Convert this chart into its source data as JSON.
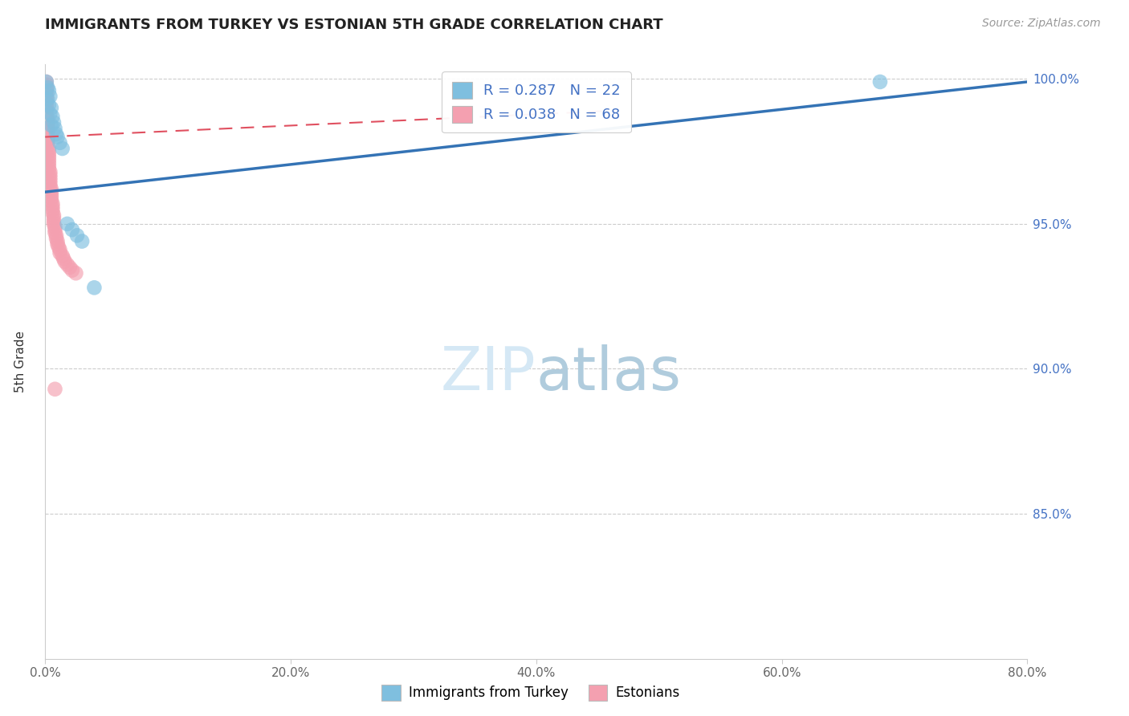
{
  "title": "IMMIGRANTS FROM TURKEY VS ESTONIAN 5TH GRADE CORRELATION CHART",
  "source_text": "Source: ZipAtlas.com",
  "ylabel": "5th Grade",
  "xlim": [
    0.0,
    0.8
  ],
  "ylim": [
    0.8,
    1.005
  ],
  "xtick_vals": [
    0.0,
    0.2,
    0.4,
    0.6,
    0.8
  ],
  "xtick_labels": [
    "0.0%",
    "20.0%",
    "40.0%",
    "60.0%",
    "80.0%"
  ],
  "ytick_vals": [
    0.85,
    0.9,
    0.95,
    1.0
  ],
  "ytick_labels": [
    "85.0%",
    "90.0%",
    "95.0%",
    "100.0%"
  ],
  "blue_color": "#7fbfdf",
  "pink_color": "#f4a0b0",
  "blue_line_color": "#3473b5",
  "pink_line_color": "#e05060",
  "legend_blue_label": "R = 0.287   N = 22",
  "legend_pink_label": "R = 0.038   N = 68",
  "legend_label1": "Immigrants from Turkey",
  "legend_label2": "Estonians",
  "ytick_color": "#4472c4",
  "grid_color": "#cccccc",
  "background_color": "#ffffff",
  "watermark_color": "#d5e8f5",
  "blue_scatter_x": [
    0.001,
    0.002,
    0.002,
    0.003,
    0.003,
    0.004,
    0.004,
    0.005,
    0.005,
    0.006,
    0.007,
    0.008,
    0.009,
    0.01,
    0.012,
    0.014,
    0.018,
    0.022,
    0.026,
    0.03,
    0.04,
    0.68
  ],
  "blue_scatter_y": [
    0.999,
    0.997,
    0.993,
    0.996,
    0.991,
    0.994,
    0.988,
    0.99,
    0.984,
    0.987,
    0.985,
    0.983,
    0.981,
    0.98,
    0.978,
    0.976,
    0.95,
    0.948,
    0.946,
    0.944,
    0.928,
    0.999
  ],
  "pink_scatter_x": [
    0.001,
    0.001,
    0.001,
    0.001,
    0.001,
    0.001,
    0.001,
    0.001,
    0.001,
    0.001,
    0.001,
    0.001,
    0.001,
    0.002,
    0.002,
    0.002,
    0.002,
    0.002,
    0.002,
    0.002,
    0.002,
    0.002,
    0.002,
    0.003,
    0.003,
    0.003,
    0.003,
    0.003,
    0.003,
    0.003,
    0.003,
    0.004,
    0.004,
    0.004,
    0.004,
    0.004,
    0.004,
    0.005,
    0.005,
    0.005,
    0.005,
    0.005,
    0.006,
    0.006,
    0.006,
    0.006,
    0.007,
    0.007,
    0.007,
    0.007,
    0.008,
    0.008,
    0.008,
    0.009,
    0.009,
    0.01,
    0.01,
    0.011,
    0.012,
    0.012,
    0.014,
    0.015,
    0.016,
    0.018,
    0.02,
    0.022,
    0.025,
    0.008
  ],
  "pink_scatter_y": [
    0.999,
    0.998,
    0.997,
    0.996,
    0.995,
    0.994,
    0.993,
    0.992,
    0.991,
    0.99,
    0.989,
    0.988,
    0.987,
    0.986,
    0.985,
    0.984,
    0.983,
    0.982,
    0.981,
    0.98,
    0.979,
    0.978,
    0.977,
    0.976,
    0.975,
    0.974,
    0.973,
    0.972,
    0.971,
    0.97,
    0.969,
    0.968,
    0.967,
    0.966,
    0.965,
    0.964,
    0.963,
    0.962,
    0.961,
    0.96,
    0.959,
    0.958,
    0.957,
    0.956,
    0.955,
    0.954,
    0.953,
    0.952,
    0.951,
    0.95,
    0.949,
    0.948,
    0.947,
    0.946,
    0.945,
    0.944,
    0.943,
    0.942,
    0.941,
    0.94,
    0.939,
    0.938,
    0.937,
    0.936,
    0.935,
    0.934,
    0.933,
    0.893
  ],
  "blue_trend_x": [
    0.0,
    0.8
  ],
  "blue_trend_y": [
    0.961,
    0.999
  ],
  "pink_trend_x": [
    0.0,
    0.46
  ],
  "pink_trend_y": [
    0.98,
    0.989
  ]
}
